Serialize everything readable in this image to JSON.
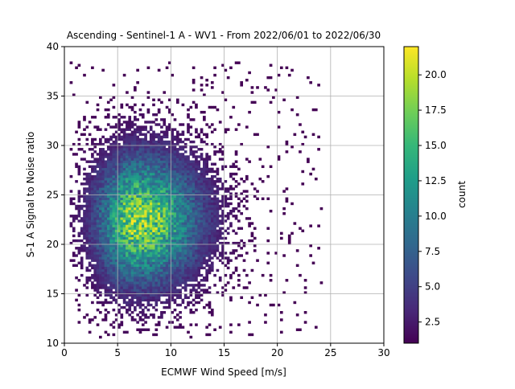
{
  "chart_data": {
    "type": "heatmap",
    "title": "Ascending - Sentinel-1 A - WV1 - From 2022/06/01 to 2022/06/30",
    "xlabel": "ECMWF Wind Speed [m/s]",
    "ylabel": "S-1 A Signal to Noise ratio",
    "xlim": [
      0,
      30
    ],
    "ylim": [
      10,
      40
    ],
    "xticks": [
      0,
      5,
      10,
      15,
      20,
      25,
      30
    ],
    "yticks": [
      10,
      15,
      20,
      25,
      30,
      35,
      40
    ],
    "grid": true,
    "bin_count": [
      120,
      120
    ],
    "colorbar": {
      "label": "count",
      "colormap": "viridis",
      "range": [
        1,
        22
      ],
      "ticks": [
        "2.5",
        "5.0",
        "7.5",
        "10.0",
        "12.5",
        "15.0",
        "17.5",
        "20.0"
      ]
    },
    "distribution": {
      "peak": {
        "x": 7.0,
        "y": 22.5
      },
      "max_count": 22,
      "spread_x": 2.6,
      "spread_y": 4.2,
      "skew": "right",
      "bounds": {
        "x": [
          0.5,
          24.5
        ],
        "y": [
          10.5,
          38.5
        ]
      }
    }
  },
  "colors": {
    "grid": "#b0b0b0",
    "axes": "#000000",
    "viridis": [
      "#440154",
      "#482878",
      "#3e4989",
      "#31688e",
      "#26828e",
      "#1f9e89",
      "#35b779",
      "#6ece58",
      "#b5de2b",
      "#fde725"
    ]
  }
}
